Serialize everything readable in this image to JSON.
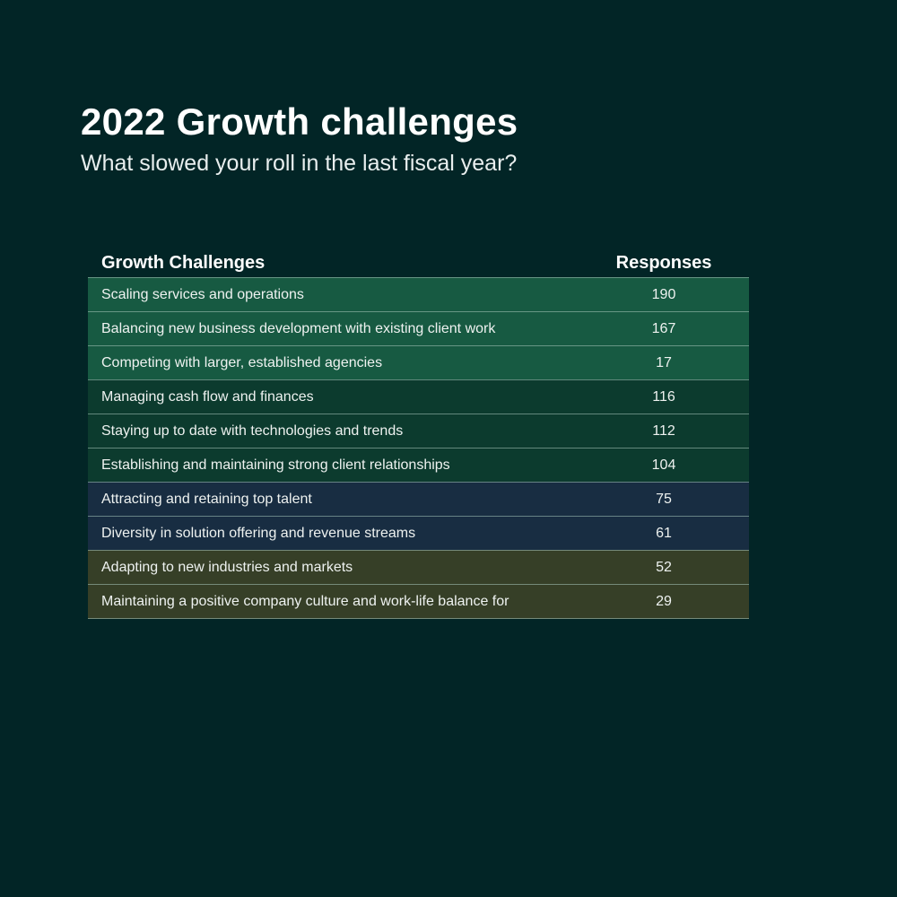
{
  "title": "2022 Growth challenges",
  "subtitle": "What slowed your roll in the last fiscal year?",
  "chart_data": {
    "type": "table",
    "columns": [
      "Growth Challenges",
      "Responses"
    ],
    "rows": [
      {
        "label": "Scaling services and operations",
        "value": "190",
        "color": "#175a42"
      },
      {
        "label": "Balancing new business development with existing client work",
        "value": "167",
        "color": "#175a42"
      },
      {
        "label": "Competing with larger, established agencies",
        "value": "17",
        "color": "#175a42"
      },
      {
        "label": "Managing cash flow and finances",
        "value": "116",
        "color": "#0c3b2e"
      },
      {
        "label": "Staying up to date with technologies and trends",
        "value": "112",
        "color": "#0c3b2e"
      },
      {
        "label": "Establishing and maintaining strong client relationships",
        "value": "104",
        "color": "#0c3b2e"
      },
      {
        "label": "Attracting and retaining top talent",
        "value": "75",
        "color": "#182d42"
      },
      {
        "label": "Diversity in solution offering and revenue streams",
        "value": "61",
        "color": "#182d42"
      },
      {
        "label": "Adapting to new industries and markets",
        "value": "52",
        "color": "#363f27"
      },
      {
        "label": "Maintaining a positive company culture and work-life balance for",
        "value": "29",
        "color": "#363f27"
      }
    ]
  }
}
